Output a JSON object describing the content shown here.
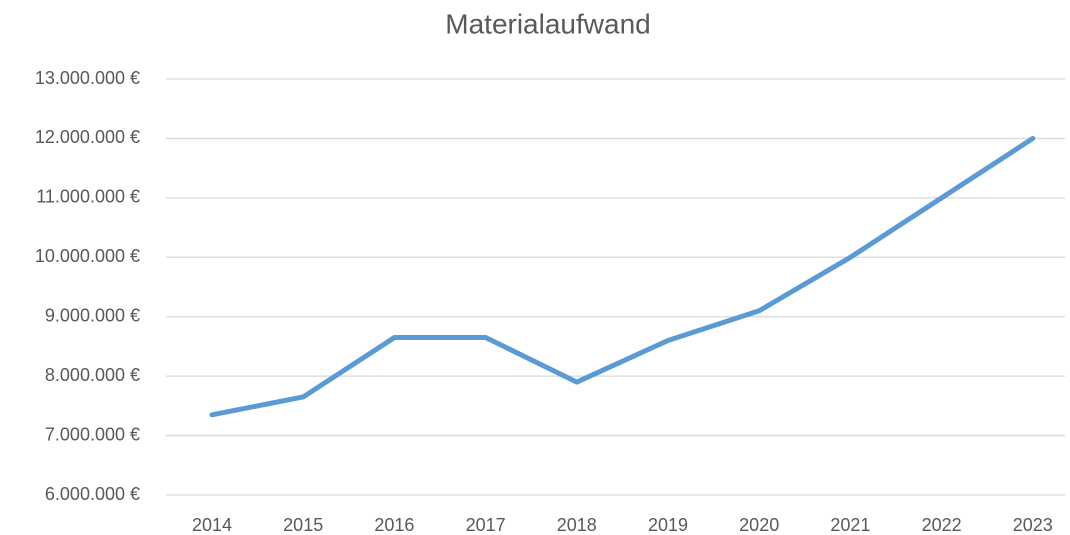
{
  "chart_data": {
    "type": "line",
    "title": "Materialaufwand",
    "categories": [
      "2014",
      "2015",
      "2016",
      "2017",
      "2018",
      "2019",
      "2020",
      "2021",
      "2022",
      "2023"
    ],
    "series": [
      {
        "name": "Materialaufwand",
        "color": "#5b9bd5",
        "values": [
          7350000,
          7650000,
          8650000,
          8650000,
          7900000,
          8600000,
          9100000,
          10000000,
          11000000,
          12000000
        ]
      }
    ],
    "ylim": [
      6000000,
      13000000
    ],
    "yticks": [
      {
        "value": 6000000,
        "label": "6.000.000 €"
      },
      {
        "value": 7000000,
        "label": "7.000.000 €"
      },
      {
        "value": 8000000,
        "label": "8.000.000 €"
      },
      {
        "value": 9000000,
        "label": "9.000.000 €"
      },
      {
        "value": 10000000,
        "label": "10.000.000 €"
      },
      {
        "value": 11000000,
        "label": "11.000.000 €"
      },
      {
        "value": 12000000,
        "label": "12.000.000 €"
      },
      {
        "value": 13000000,
        "label": "13.000.000 €"
      }
    ],
    "grid": true
  }
}
